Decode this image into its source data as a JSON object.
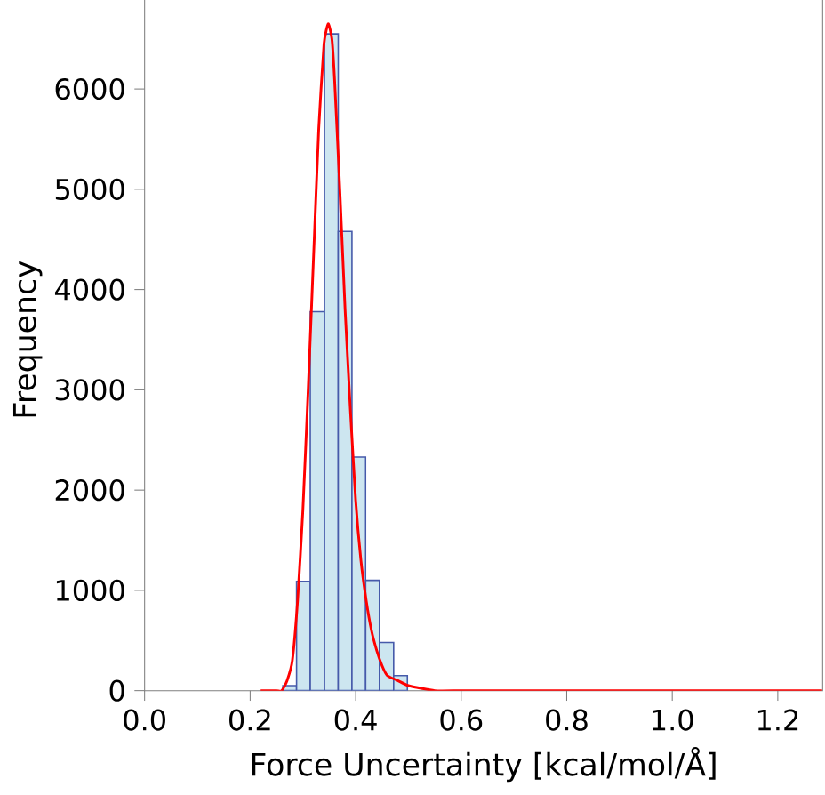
{
  "chart_data": {
    "type": "histogram",
    "xlabel": "Force Uncertainty [kcal/mol/Å]",
    "ylabel": "Frequency",
    "xlim": [
      0,
      1.285
    ],
    "ylim": [
      0,
      7000
    ],
    "xticks": [
      {
        "value": 0,
        "label": "0.0"
      },
      {
        "value": 0.2,
        "label": "0.2"
      },
      {
        "value": 0.4,
        "label": "0.4"
      },
      {
        "value": 0.6,
        "label": "0.6"
      },
      {
        "value": 0.8,
        "label": "0.8"
      },
      {
        "value": 1.0,
        "label": "1.0"
      },
      {
        "value": 1.2,
        "label": "1.2"
      }
    ],
    "yticks": [
      0,
      1000,
      2000,
      3000,
      4000,
      5000,
      6000
    ],
    "grid": false,
    "series": [
      {
        "type": "histogram",
        "color": "#cde6f0",
        "bins": [
          0.262,
          0.288,
          0.314,
          0.341,
          0.367,
          0.393,
          0.419,
          0.445,
          0.472,
          0.498
        ],
        "values": [
          50,
          1090,
          3780,
          6550,
          4580,
          2330,
          1100,
          480,
          150
        ]
      },
      {
        "type": "line",
        "color": "#ff0000",
        "x": [
          0.22,
          0.25,
          0.26,
          0.27,
          0.28,
          0.29,
          0.3,
          0.31,
          0.32,
          0.33,
          0.34,
          0.348,
          0.355,
          0.36,
          0.37,
          0.38,
          0.39,
          0.4,
          0.41,
          0.42,
          0.43,
          0.44,
          0.45,
          0.46,
          0.48,
          0.5,
          0.55,
          0.6,
          0.7,
          1.284
        ],
        "values": [
          0,
          0,
          0,
          100,
          300,
          900,
          1800,
          3000,
          4300,
          5600,
          6450,
          6650,
          6500,
          6100,
          5000,
          3800,
          2800,
          1900,
          1300,
          900,
          600,
          400,
          250,
          150,
          100,
          50,
          0,
          0,
          0,
          0
        ]
      }
    ]
  }
}
